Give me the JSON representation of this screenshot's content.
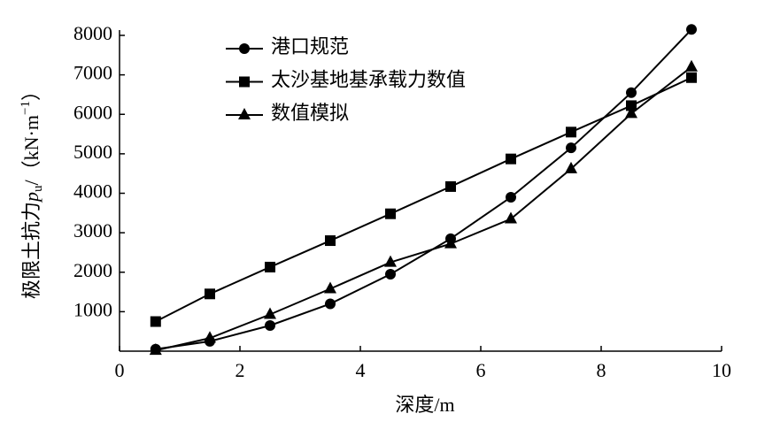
{
  "chart_data": {
    "type": "line",
    "x_label": "深度/m",
    "y_label": {
      "text": "极限土抗力",
      "symbol": "p",
      "subscript": "u",
      "unit": "/（kN·m",
      "exponent": "−1",
      "close": "）"
    },
    "x": [
      0.6,
      1.5,
      2.5,
      3.5,
      4.5,
      5.5,
      6.5,
      7.5,
      8.5,
      9.5
    ],
    "series": [
      {
        "name": "港口规范",
        "color": "#000000",
        "marker": "circle",
        "values": [
          50,
          250,
          650,
          1200,
          1950,
          2850,
          3900,
          5150,
          6550,
          8150
        ]
      },
      {
        "name": "太沙基地基承载力数值",
        "color": "#000000",
        "marker": "square",
        "values": [
          750,
          1450,
          2130,
          2800,
          3480,
          4170,
          4870,
          5550,
          6220,
          6930
        ]
      },
      {
        "name": "数值模拟",
        "color": "#000000",
        "marker": "triangle",
        "values": [
          20,
          330,
          930,
          1580,
          2250,
          2720,
          3350,
          4620,
          6020,
          7200
        ]
      }
    ],
    "xlim": [
      0,
      10
    ],
    "xticks": [
      0,
      2,
      4,
      6,
      8,
      10
    ],
    "ylim": [
      0,
      8000
    ],
    "yticks": [
      1000,
      2000,
      3000,
      4000,
      5000,
      6000,
      7000,
      8000
    ],
    "grid": false,
    "legend": "upper-left"
  }
}
